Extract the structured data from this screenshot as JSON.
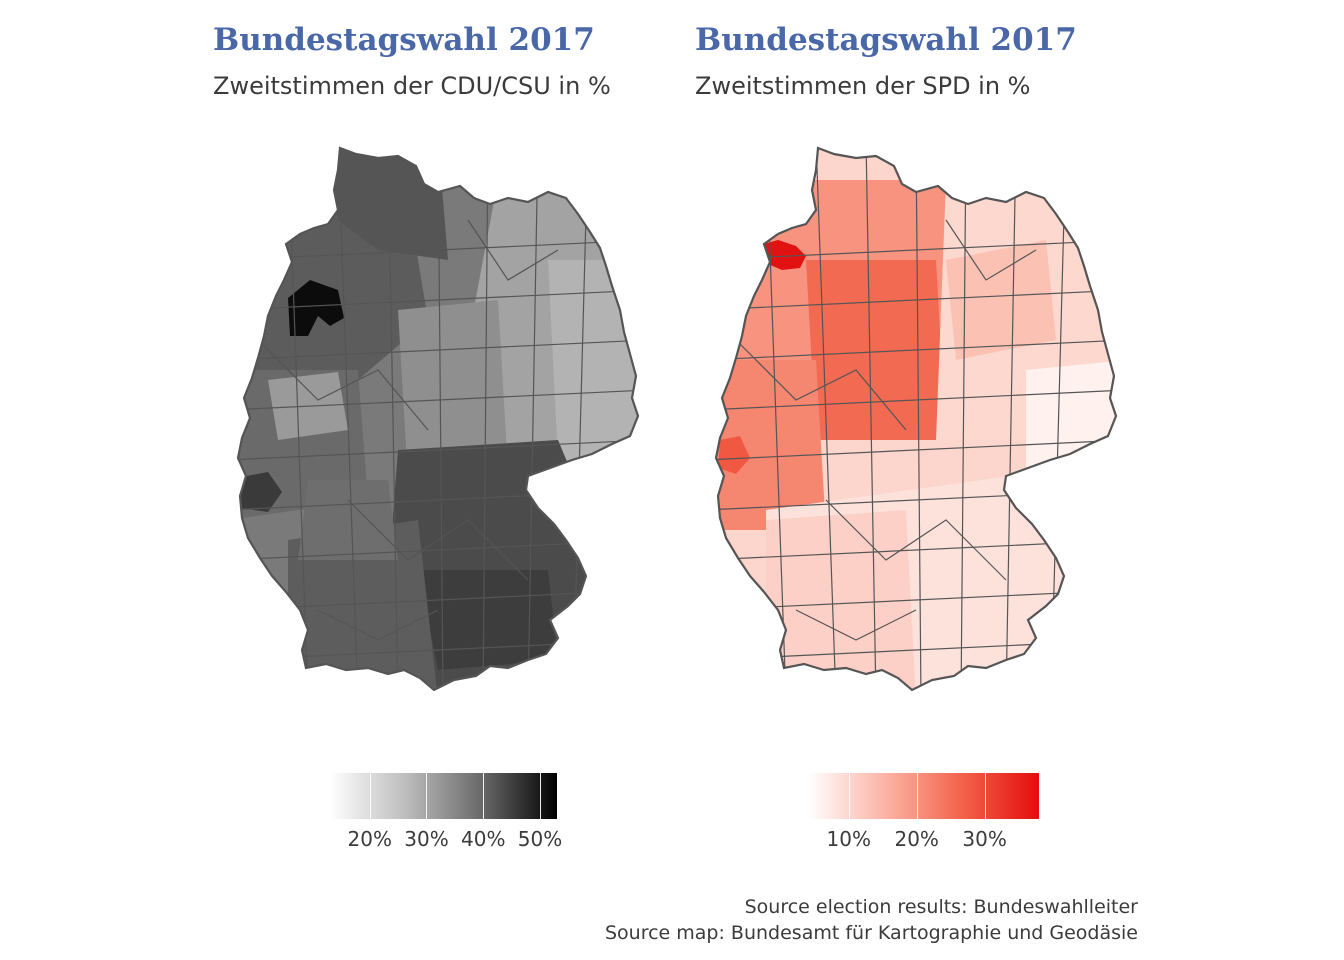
{
  "panels": [
    {
      "title": "Bundestagswahl 2017",
      "subtitle": "Zweitstimmen der CDU/CSU in %",
      "legend": {
        "ticks": [
          {
            "label": "20%",
            "value": 20
          },
          {
            "label": "30%",
            "value": 30
          },
          {
            "label": "40%",
            "value": 40
          },
          {
            "label": "50%",
            "value": 50
          }
        ],
        "range": [
          13,
          53
        ],
        "colors": [
          "#ffffff",
          "#bdbdbd",
          "#6a6a6a",
          "#000000"
        ]
      },
      "highlight_color": "#0c0c0c"
    },
    {
      "title": "Bundestagswahl 2017",
      "subtitle": "Zweitstimmen der SPD in %",
      "legend": {
        "ticks": [
          {
            "label": "10%",
            "value": 10
          },
          {
            "label": "20%",
            "value": 20
          },
          {
            "label": "30%",
            "value": 30
          }
        ],
        "range": [
          4,
          38
        ],
        "colors": [
          "#ffffff",
          "#fbb4a6",
          "#f3634b",
          "#e40c0c"
        ]
      },
      "highlight_color": "#e21212"
    }
  ],
  "map_border_color": "#555555",
  "sources": [
    "Source election results: Bundeswahlleiter",
    "Source map: Bundesamt für Kartographie und Geodäsie"
  ]
}
